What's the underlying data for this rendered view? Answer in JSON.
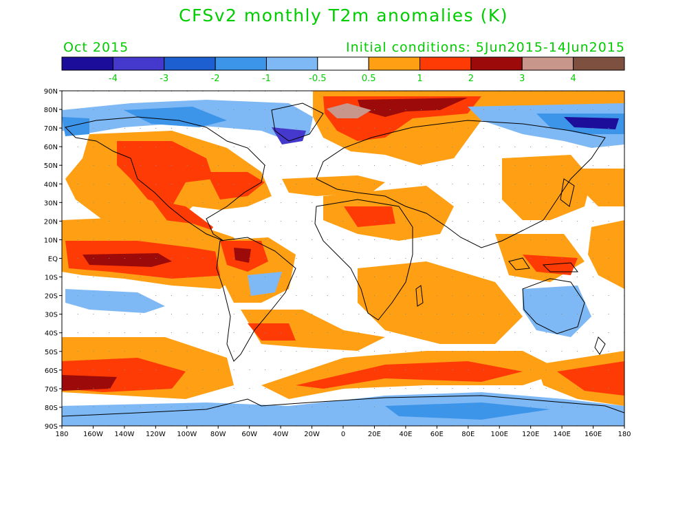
{
  "title": "CFSv2 monthly T2m anomalies (K)",
  "valid_month": "Oct 2015",
  "initial_conditions": "Initial conditions: 5Jun2015-14Jun2015",
  "colors": {
    "text": "#00cc00",
    "legend": [
      "#1c0d9a",
      "#4538cc",
      "#1d5fd0",
      "#3d95ea",
      "#7fb9f5",
      "#ffffff",
      "#ff9f14",
      "#ff3b05",
      "#9c0a0a",
      "#c9968c",
      "#7e5040"
    ]
  },
  "legend_labels": [
    "-4",
    "-3",
    "-2",
    "-1",
    "-0.5",
    "0.5",
    "1",
    "2",
    "3",
    "4"
  ],
  "lat_labels": [
    "90N",
    "80N",
    "70N",
    "60N",
    "50N",
    "40N",
    "30N",
    "20N",
    "10N",
    "EQ",
    "10S",
    "20S",
    "30S",
    "40S",
    "50S",
    "60S",
    "70S",
    "80S",
    "90S"
  ],
  "lon_labels": [
    "180",
    "160W",
    "140W",
    "120W",
    "100W",
    "80W",
    "60W",
    "40W",
    "20W",
    "0",
    "20E",
    "40E",
    "60E",
    "80E",
    "100E",
    "120E",
    "140E",
    "160E",
    "180"
  ]
}
